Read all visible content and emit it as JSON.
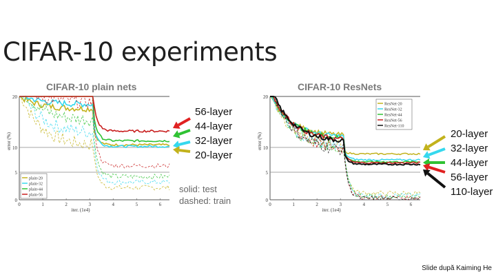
{
  "slide": {
    "title": "CIFAR-10 experiments",
    "credit": "Slide după Kaiming He",
    "note_lines": [
      "solid: test",
      "dashed: train"
    ],
    "arrow_colors": {
      "20": "#c2b21c",
      "32": "#35d8ee",
      "44": "#2fc233",
      "56": "#e02121",
      "110": "#111111"
    }
  },
  "chart_data": [
    {
      "type": "line",
      "title": "CIFAR-10 plain nets",
      "xlabel": "iter. (1e4)",
      "ylabel": "error (%)",
      "xlim": [
        0,
        6.4
      ],
      "ylim": [
        0,
        20
      ],
      "xticks": [
        "0",
        "1",
        "2",
        "3",
        "4",
        "5",
        "6"
      ],
      "yticks": [
        "0",
        "5",
        "10",
        "20"
      ],
      "legend": [
        "plain-20",
        "plain-32",
        "plain-44",
        "plain-56"
      ],
      "legend_position": "bottom-left",
      "callouts": [
        "56-layer",
        "44-layer",
        "32-layer",
        "20-layer"
      ],
      "series": [
        {
          "name": "plain-20",
          "color": "#c2b21c",
          "test_final": 10.5,
          "train_final": 2.2
        },
        {
          "name": "plain-32",
          "color": "#35d8ee",
          "test_final": 10.2,
          "train_final": 3.2
        },
        {
          "name": "plain-44",
          "color": "#2fc233",
          "test_final": 11.3,
          "train_final": 4.2
        },
        {
          "name": "plain-56",
          "color": "#c81c1c",
          "test_final": 13.2,
          "train_final": 6.3
        }
      ]
    },
    {
      "type": "line",
      "title": "CIFAR-10 ResNets",
      "xlabel": "iter. (1e4)",
      "ylabel": "error (%)",
      "xlim": [
        0,
        6.4
      ],
      "ylim": [
        0,
        20
      ],
      "xticks": [
        "0",
        "1",
        "2",
        "3",
        "4",
        "5",
        "6"
      ],
      "yticks": [
        "0",
        "5",
        "10",
        "20"
      ],
      "legend": [
        "ResNet-20",
        "ResNet-32",
        "ResNet-44",
        "ResNet-56",
        "ResNet-110"
      ],
      "legend_position": "top-right",
      "callouts": [
        "20-layer",
        "32-layer",
        "44-layer",
        "56-layer",
        "110-layer"
      ],
      "series": [
        {
          "name": "ResNet-20",
          "color": "#c2b21c",
          "test_final": 8.7,
          "train_final": 1.2
        },
        {
          "name": "ResNet-32",
          "color": "#35d8ee",
          "test_final": 7.5,
          "train_final": 0.8
        },
        {
          "name": "ResNet-44",
          "color": "#2fc233",
          "test_final": 7.1,
          "train_final": 0.6
        },
        {
          "name": "ResNet-56",
          "color": "#c81c1c",
          "test_final": 6.9,
          "train_final": 0.4
        },
        {
          "name": "ResNet-110",
          "color": "#111111",
          "test_final": 6.6,
          "train_final": 0.2
        }
      ]
    }
  ]
}
